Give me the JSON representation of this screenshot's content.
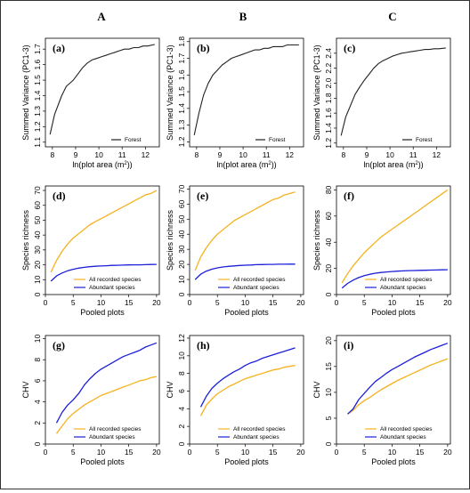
{
  "column_headers": [
    "A",
    "B",
    "C"
  ],
  "colors": {
    "all_species": "#F5B21F",
    "abundant": "#1B1FD8",
    "forest": "#222222"
  },
  "chart_data": [
    {
      "id": "a",
      "type": "line",
      "panel_label": "(a)",
      "xlabel": "ln(plot area (m²))",
      "ylabel": "Summed Variance (PC1-3)",
      "xlim": [
        7.7,
        12.6
      ],
      "ylim": [
        1.07,
        1.77
      ],
      "xticks": [
        8,
        9,
        10,
        11,
        12
      ],
      "yticks": [
        1.1,
        1.2,
        1.3,
        1.4,
        1.5,
        1.6,
        1.7
      ],
      "ytick_fmt": 1,
      "legend_position": "bottom-right",
      "series": [
        {
          "name": "Forest",
          "color": "forest",
          "x": [
            7.9,
            8.1,
            8.4,
            8.6,
            8.9,
            9.1,
            9.3,
            9.5,
            9.7,
            9.9,
            10.1,
            10.3,
            10.5,
            10.7,
            10.9,
            11.1,
            11.3,
            11.5,
            11.7,
            11.9,
            12.1,
            12.4
          ],
          "y": [
            1.15,
            1.28,
            1.4,
            1.46,
            1.5,
            1.54,
            1.58,
            1.61,
            1.63,
            1.64,
            1.65,
            1.66,
            1.67,
            1.68,
            1.69,
            1.7,
            1.7,
            1.71,
            1.71,
            1.72,
            1.72,
            1.73
          ]
        }
      ]
    },
    {
      "id": "b",
      "type": "line",
      "panel_label": "(b)",
      "xlabel": "ln(plot area (m²))",
      "ylabel": "Summed Variance (PC1-3)",
      "xlim": [
        7.7,
        12.6
      ],
      "ylim": [
        1.17,
        1.82
      ],
      "xticks": [
        8,
        9,
        10,
        11,
        12
      ],
      "yticks": [
        1.2,
        1.3,
        1.4,
        1.5,
        1.6,
        1.7,
        1.8
      ],
      "ytick_fmt": 1,
      "legend_position": "bottom-right",
      "series": [
        {
          "name": "Forest",
          "color": "forest",
          "x": [
            7.9,
            8.1,
            8.3,
            8.5,
            8.7,
            8.9,
            9.1,
            9.3,
            9.5,
            9.7,
            9.9,
            10.1,
            10.3,
            10.5,
            10.7,
            10.9,
            11.1,
            11.3,
            11.5,
            11.7,
            11.9,
            12.1,
            12.4
          ],
          "y": [
            1.24,
            1.37,
            1.48,
            1.55,
            1.6,
            1.63,
            1.66,
            1.68,
            1.7,
            1.71,
            1.72,
            1.73,
            1.74,
            1.75,
            1.75,
            1.76,
            1.76,
            1.77,
            1.77,
            1.77,
            1.78,
            1.78,
            1.78
          ]
        }
      ]
    },
    {
      "id": "c",
      "type": "line",
      "panel_label": "(c)",
      "xlabel": "ln(plot area (m²))",
      "ylabel": "Summed Variance (PC1-3)",
      "xlim": [
        7.7,
        12.6
      ],
      "ylim": [
        1.15,
        2.6
      ],
      "xticks": [
        8,
        9,
        10,
        11,
        12
      ],
      "yticks": [
        1.2,
        1.4,
        1.6,
        1.8,
        2.0,
        2.2,
        2.4
      ],
      "ytick_fmt": 1,
      "legend_position": "bottom-right",
      "series": [
        {
          "name": "Forest",
          "color": "forest",
          "x": [
            7.9,
            8.1,
            8.3,
            8.5,
            8.7,
            8.9,
            9.1,
            9.3,
            9.5,
            9.7,
            9.9,
            10.1,
            10.3,
            10.5,
            10.7,
            10.9,
            11.1,
            11.3,
            11.5,
            11.7,
            11.9,
            12.1,
            12.4
          ],
          "y": [
            1.3,
            1.55,
            1.7,
            1.85,
            1.95,
            2.04,
            2.12,
            2.2,
            2.26,
            2.3,
            2.33,
            2.36,
            2.38,
            2.4,
            2.41,
            2.42,
            2.43,
            2.44,
            2.45,
            2.45,
            2.46,
            2.46,
            2.47
          ]
        }
      ]
    },
    {
      "id": "d",
      "type": "line",
      "panel_label": "(d)",
      "xlabel": "Pooled plots",
      "ylabel": "Species richness",
      "xlim": [
        0,
        20.5
      ],
      "ylim": [
        0,
        73
      ],
      "xticks": [
        0,
        5,
        10,
        15,
        20
      ],
      "yticks": [
        0,
        10,
        20,
        30,
        40,
        50,
        60,
        70
      ],
      "ytick_fmt": 0,
      "legend_position": "bottom-right",
      "series": [
        {
          "name": "All recorded species",
          "color": "all_species",
          "x": [
            1,
            2,
            3,
            4,
            5,
            6,
            7,
            8,
            9,
            10,
            11,
            12,
            13,
            14,
            15,
            16,
            17,
            18,
            19,
            20
          ],
          "y": [
            15,
            23,
            29,
            34,
            38,
            41,
            44,
            47,
            49,
            51,
            53,
            55,
            57,
            59,
            61,
            63,
            65,
            67,
            68,
            70
          ]
        },
        {
          "name": "Abundant species",
          "color": "abundant",
          "x": [
            1,
            2,
            3,
            4,
            5,
            6,
            7,
            8,
            9,
            10,
            11,
            12,
            13,
            14,
            15,
            16,
            17,
            18,
            19,
            20
          ],
          "y": [
            9,
            12.5,
            14.5,
            16,
            17,
            17.8,
            18.3,
            18.7,
            19,
            19.2,
            19.4,
            19.6,
            19.7,
            19.8,
            19.9,
            20,
            20,
            20.1,
            20.2,
            20.3
          ]
        }
      ]
    },
    {
      "id": "e",
      "type": "line",
      "panel_label": "(e)",
      "xlabel": "Pooled plots",
      "ylabel": "Species richness",
      "xlim": [
        0,
        20.5
      ],
      "ylim": [
        0,
        72
      ],
      "xticks": [
        0,
        5,
        10,
        15,
        20
      ],
      "yticks": [
        0,
        10,
        20,
        30,
        40,
        50,
        60,
        70
      ],
      "ytick_fmt": 0,
      "legend_position": "bottom-right",
      "series": [
        {
          "name": "All recorded species",
          "color": "all_species",
          "x": [
            1,
            2,
            3,
            4,
            5,
            6,
            7,
            8,
            9,
            10,
            11,
            12,
            13,
            14,
            15,
            16,
            17,
            18,
            19
          ],
          "y": [
            16,
            25,
            31,
            36,
            40,
            43,
            46,
            49,
            51,
            53,
            55,
            57,
            59,
            61,
            63,
            64,
            66,
            67,
            68
          ]
        },
        {
          "name": "Abundant species",
          "color": "abundant",
          "x": [
            1,
            2,
            3,
            4,
            5,
            6,
            7,
            8,
            9,
            10,
            11,
            12,
            13,
            14,
            15,
            16,
            17,
            18,
            19
          ],
          "y": [
            10,
            13.5,
            15.5,
            16.8,
            17.7,
            18.3,
            18.7,
            19,
            19.3,
            19.5,
            19.6,
            19.8,
            19.9,
            20,
            20,
            20.1,
            20.1,
            20.2,
            20.2
          ]
        }
      ]
    },
    {
      "id": "f",
      "type": "line",
      "panel_label": "(f)",
      "xlabel": "Pooled plots",
      "ylabel": "Species richness",
      "xlim": [
        0,
        20.5
      ],
      "ylim": [
        0,
        83
      ],
      "xticks": [
        0,
        5,
        10,
        15,
        20
      ],
      "yticks": [
        0,
        20,
        40,
        60,
        80
      ],
      "ytick_fmt": 0,
      "legend_position": "bottom-right",
      "series": [
        {
          "name": "All recorded species",
          "color": "all_species",
          "x": [
            1,
            2,
            3,
            4,
            5,
            6,
            7,
            8,
            9,
            10,
            11,
            12,
            13,
            14,
            15,
            16,
            17,
            18,
            19,
            20
          ],
          "y": [
            9,
            16,
            22,
            27,
            32,
            36,
            40,
            44,
            47,
            50,
            53,
            56,
            59,
            62,
            65,
            68,
            71,
            74,
            77,
            80
          ]
        },
        {
          "name": "Abundant species",
          "color": "abundant",
          "x": [
            1,
            2,
            3,
            4,
            5,
            6,
            7,
            8,
            9,
            10,
            11,
            12,
            13,
            14,
            15,
            16,
            17,
            18,
            19,
            20
          ],
          "y": [
            5,
            8.5,
            11,
            13,
            14.5,
            15.5,
            16.3,
            16.9,
            17.3,
            17.6,
            17.9,
            18.1,
            18.3,
            18.4,
            18.5,
            18.6,
            18.7,
            18.8,
            18.9,
            19
          ]
        }
      ]
    },
    {
      "id": "g",
      "type": "line",
      "panel_label": "(g)",
      "xlabel": "Pooled plots",
      "ylabel": "CHV",
      "xlim": [
        0,
        20.5
      ],
      "ylim": [
        0,
        10.3
      ],
      "xticks": [
        0,
        5,
        10,
        15,
        20
      ],
      "yticks": [
        0,
        2,
        4,
        6,
        8,
        10
      ],
      "ytick_fmt": 0,
      "legend_position": "bottom-right",
      "series": [
        {
          "name": "All recorded species",
          "color": "all_species",
          "x": [
            2,
            3,
            4,
            5,
            6,
            7,
            8,
            9,
            10,
            11,
            12,
            13,
            14,
            15,
            16,
            17,
            18,
            19,
            20
          ],
          "y": [
            1.0,
            1.7,
            2.4,
            2.9,
            3.3,
            3.7,
            4.0,
            4.3,
            4.6,
            4.8,
            5.0,
            5.2,
            5.4,
            5.6,
            5.8,
            6.0,
            6.1,
            6.3,
            6.4
          ]
        },
        {
          "name": "Abundant species",
          "color": "abundant",
          "x": [
            2,
            3,
            4,
            5,
            6,
            7,
            8,
            9,
            10,
            11,
            12,
            13,
            14,
            15,
            16,
            17,
            18,
            19,
            20
          ],
          "y": [
            2.0,
            3.0,
            3.7,
            4.2,
            4.8,
            5.6,
            6.2,
            6.7,
            7.1,
            7.4,
            7.7,
            8.0,
            8.3,
            8.5,
            8.7,
            8.9,
            9.2,
            9.4,
            9.6
          ]
        }
      ]
    },
    {
      "id": "h",
      "type": "line",
      "panel_label": "(h)",
      "xlabel": "Pooled plots",
      "ylabel": "CHV",
      "xlim": [
        0,
        20.5
      ],
      "ylim": [
        0,
        12.3
      ],
      "xticks": [
        0,
        5,
        10,
        15,
        20
      ],
      "yticks": [
        0,
        2,
        4,
        6,
        8,
        10,
        12
      ],
      "ytick_fmt": 0,
      "legend_position": "bottom-right",
      "series": [
        {
          "name": "All recorded species",
          "color": "all_species",
          "x": [
            2,
            3,
            4,
            5,
            6,
            7,
            8,
            9,
            10,
            11,
            12,
            13,
            14,
            15,
            16,
            17,
            18,
            19
          ],
          "y": [
            3.2,
            4.4,
            5.1,
            5.7,
            6.1,
            6.5,
            6.8,
            7.1,
            7.4,
            7.6,
            7.8,
            8.0,
            8.2,
            8.4,
            8.5,
            8.7,
            8.8,
            8.9
          ]
        },
        {
          "name": "Abundant species",
          "color": "abundant",
          "x": [
            2,
            3,
            4,
            5,
            6,
            7,
            8,
            9,
            10,
            11,
            12,
            13,
            14,
            15,
            16,
            17,
            18,
            19
          ],
          "y": [
            4.2,
            5.4,
            6.3,
            6.9,
            7.4,
            7.8,
            8.2,
            8.5,
            8.9,
            9.2,
            9.4,
            9.7,
            9.9,
            10.1,
            10.3,
            10.5,
            10.7,
            10.9
          ]
        }
      ]
    },
    {
      "id": "i",
      "type": "line",
      "panel_label": "(i)",
      "xlabel": "Pooled plots",
      "ylabel": "CHV",
      "xlim": [
        0,
        20.5
      ],
      "ylim": [
        0,
        21
      ],
      "xticks": [
        0,
        5,
        10,
        15,
        20
      ],
      "yticks": [
        0,
        5,
        10,
        15,
        20
      ],
      "ytick_fmt": 0,
      "legend_position": "bottom-right",
      "series": [
        {
          "name": "All recorded species",
          "color": "all_species",
          "x": [
            2,
            3,
            4,
            5,
            6,
            7,
            8,
            9,
            10,
            11,
            12,
            13,
            14,
            15,
            16,
            17,
            18,
            19,
            20
          ],
          "y": [
            5.8,
            6.5,
            7.6,
            8.4,
            9.0,
            9.8,
            10.5,
            11.1,
            11.7,
            12.3,
            12.8,
            13.3,
            13.8,
            14.3,
            14.8,
            15.3,
            15.7,
            16.1,
            16.5
          ]
        },
        {
          "name": "Abundant species",
          "color": "abundant",
          "x": [
            2,
            3,
            4,
            5,
            6,
            7,
            8,
            9,
            10,
            11,
            12,
            13,
            14,
            15,
            16,
            17,
            18,
            19,
            20
          ],
          "y": [
            5.8,
            6.8,
            8.6,
            9.8,
            11.0,
            12.1,
            12.9,
            13.7,
            14.4,
            15.0,
            15.6,
            16.2,
            16.8,
            17.3,
            17.8,
            18.3,
            18.7,
            19.1,
            19.5
          ]
        }
      ]
    }
  ]
}
